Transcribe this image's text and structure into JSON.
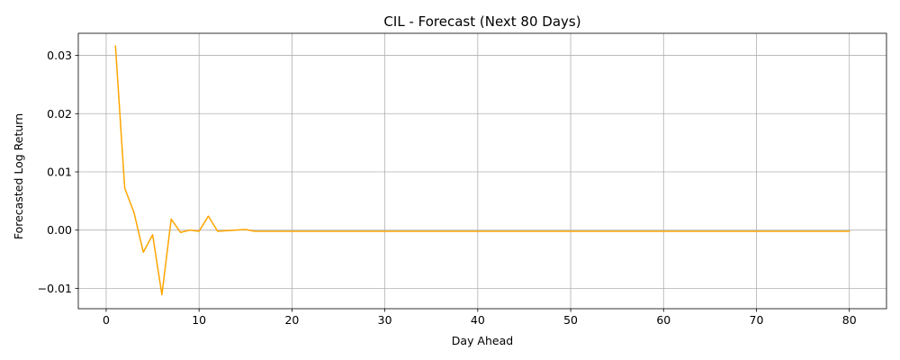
{
  "chart_data": {
    "type": "line",
    "title": "CIL - Forecast (Next 80 Days)",
    "xlabel": "Day Ahead",
    "ylabel": "Forecasted Log Return",
    "xlim": [
      -3,
      84
    ],
    "ylim": [
      -0.0135,
      0.0338
    ],
    "xticks": [
      0,
      10,
      20,
      30,
      40,
      50,
      60,
      70,
      80
    ],
    "xtick_labels": [
      "0",
      "10",
      "20",
      "30",
      "40",
      "50",
      "60",
      "70",
      "80"
    ],
    "yticks": [
      -0.01,
      0.0,
      0.01,
      0.02,
      0.03
    ],
    "ytick_labels": [
      "−0.01",
      "0.00",
      "0.01",
      "0.02",
      "0.03"
    ],
    "grid": true,
    "series": [
      {
        "color": "#FFA500",
        "x": [
          1,
          2,
          3,
          4,
          5,
          6,
          7,
          8,
          9,
          10,
          11,
          12,
          13,
          14,
          15,
          16,
          17,
          18,
          19,
          20,
          21,
          22,
          23,
          24,
          25,
          26,
          27,
          28,
          29,
          30,
          31,
          32,
          33,
          34,
          35,
          36,
          37,
          38,
          39,
          40,
          41,
          42,
          43,
          44,
          45,
          46,
          47,
          48,
          49,
          50,
          51,
          52,
          53,
          54,
          55,
          56,
          57,
          58,
          59,
          60,
          61,
          62,
          63,
          64,
          65,
          66,
          67,
          68,
          69,
          70,
          71,
          72,
          73,
          74,
          75,
          76,
          77,
          78,
          79,
          80
        ],
        "y": [
          0.0316,
          0.0072,
          0.003,
          -0.0038,
          -0.0008,
          -0.0111,
          0.0019,
          -0.0004,
          0.0,
          -0.0002,
          0.0024,
          -0.0002,
          -0.0001,
          0.0,
          0.0001,
          -0.0002,
          -0.0002,
          -0.0002,
          -0.0002,
          -0.0002,
          -0.0002,
          -0.0002,
          -0.0002,
          -0.0002,
          -0.0002,
          -0.0002,
          -0.0002,
          -0.0002,
          -0.0002,
          -0.0002,
          -0.0002,
          -0.0002,
          -0.0002,
          -0.0002,
          -0.0002,
          -0.0002,
          -0.0002,
          -0.0002,
          -0.0002,
          -0.0002,
          -0.0002,
          -0.0002,
          -0.0002,
          -0.0002,
          -0.0002,
          -0.0002,
          -0.0002,
          -0.0002,
          -0.0002,
          -0.0002,
          -0.0002,
          -0.0002,
          -0.0002,
          -0.0002,
          -0.0002,
          -0.0002,
          -0.0002,
          -0.0002,
          -0.0002,
          -0.0002,
          -0.0002,
          -0.0002,
          -0.0002,
          -0.0002,
          -0.0002,
          -0.0002,
          -0.0002,
          -0.0002,
          -0.0002,
          -0.0002,
          -0.0002,
          -0.0002,
          -0.0002,
          -0.0002,
          -0.0002,
          -0.0002,
          -0.0002,
          -0.0002,
          -0.0002,
          -0.0002
        ]
      }
    ]
  }
}
